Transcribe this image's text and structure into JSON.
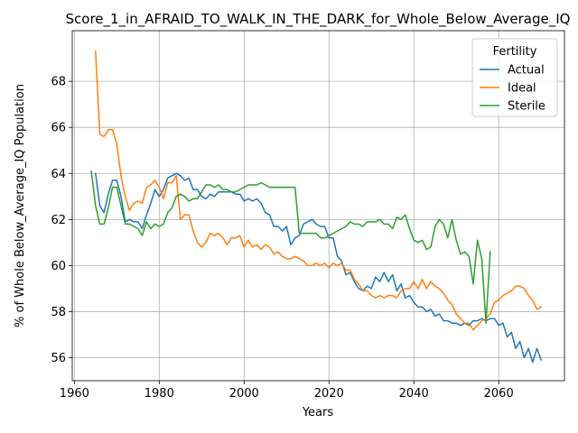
{
  "chart_data": {
    "type": "line",
    "title": "Score_1_in_AFRAID_TO_WALK_IN_THE_DARK_for_Whole_Below_Average_IQ",
    "xlabel": "Years",
    "ylabel": "% of Whole Below_Average_IQ Population",
    "xlim": [
      1959.5,
      2075.5
    ],
    "ylim": [
      55.0,
      70.2
    ],
    "xticks": [
      1960,
      1980,
      2000,
      2020,
      2040,
      2060
    ],
    "yticks": [
      56,
      58,
      60,
      62,
      64,
      66,
      68
    ],
    "grid": true,
    "legend": {
      "title": "Fertility",
      "position": "top-right"
    },
    "series": [
      {
        "name": "Actual",
        "color": "#1f77b4",
        "x": [
          1965,
          1966,
          1967,
          1968,
          1969,
          1970,
          1971,
          1972,
          1973,
          1974,
          1975,
          1976,
          1977,
          1978,
          1979,
          1980,
          1981,
          1982,
          1983,
          1984,
          1985,
          1986,
          1987,
          1988,
          1989,
          1990,
          1991,
          1992,
          1993,
          1994,
          1995,
          1996,
          1997,
          1998,
          1999,
          2000,
          2001,
          2002,
          2003,
          2004,
          2005,
          2006,
          2007,
          2008,
          2009,
          2010,
          2011,
          2012,
          2013,
          2014,
          2015,
          2016,
          2017,
          2018,
          2019,
          2020,
          2021,
          2022,
          2023,
          2024,
          2025,
          2026,
          2027,
          2028,
          2029,
          2030,
          2031,
          2032,
          2033,
          2034,
          2035,
          2036,
          2037,
          2038,
          2039,
          2040,
          2041,
          2042,
          2043,
          2044,
          2045,
          2046,
          2047,
          2048,
          2049,
          2050,
          2051,
          2052,
          2053,
          2054,
          2055,
          2056,
          2057,
          2058,
          2059,
          2060,
          2061,
          2062,
          2063,
          2064,
          2065,
          2066,
          2067,
          2068,
          2069,
          2070
        ],
        "y": [
          64.0,
          62.6,
          62.3,
          63.1,
          63.7,
          63.7,
          63.0,
          61.9,
          62.0,
          61.9,
          61.9,
          61.6,
          62.2,
          62.7,
          63.3,
          63.0,
          63.3,
          63.8,
          63.9,
          64.0,
          63.9,
          63.7,
          63.8,
          63.3,
          63.3,
          63.0,
          62.9,
          63.1,
          63.0,
          63.2,
          63.2,
          63.2,
          63.2,
          63.1,
          63.1,
          62.8,
          62.9,
          62.8,
          62.9,
          62.7,
          62.3,
          62.2,
          61.7,
          61.7,
          61.5,
          61.7,
          60.9,
          61.2,
          61.3,
          61.8,
          61.9,
          62.0,
          61.8,
          61.7,
          61.7,
          61.2,
          61.2,
          60.4,
          60.2,
          59.6,
          59.7,
          59.3,
          59.0,
          58.9,
          59.1,
          59.0,
          59.5,
          59.3,
          59.7,
          59.3,
          59.6,
          58.9,
          59.2,
          58.6,
          58.7,
          58.4,
          58.2,
          58.2,
          58.0,
          58.1,
          57.8,
          57.9,
          57.6,
          57.6,
          57.5,
          57.5,
          57.4,
          57.5,
          57.4,
          57.6,
          57.6,
          57.7,
          57.6,
          57.7,
          57.7,
          57.4,
          57.5,
          56.9,
          57.1,
          56.4,
          56.7,
          56.0,
          56.4,
          55.8,
          56.4,
          55.9
        ]
      },
      {
        "name": "Ideal",
        "color": "#ff7f0e",
        "x": [
          1965,
          1966,
          1967,
          1968,
          1969,
          1970,
          1971,
          1972,
          1973,
          1974,
          1975,
          1976,
          1977,
          1978,
          1979,
          1980,
          1981,
          1982,
          1983,
          1984,
          1985,
          1986,
          1987,
          1988,
          1989,
          1990,
          1991,
          1992,
          1993,
          1994,
          1995,
          1996,
          1997,
          1998,
          1999,
          2000,
          2001,
          2002,
          2003,
          2004,
          2005,
          2006,
          2007,
          2008,
          2009,
          2010,
          2011,
          2012,
          2013,
          2014,
          2015,
          2016,
          2017,
          2018,
          2019,
          2020,
          2021,
          2022,
          2023,
          2024,
          2025,
          2026,
          2027,
          2028,
          2029,
          2030,
          2031,
          2032,
          2033,
          2034,
          2035,
          2036,
          2037,
          2038,
          2039,
          2040,
          2041,
          2042,
          2043,
          2044,
          2045,
          2046,
          2047,
          2048,
          2049,
          2050,
          2051,
          2052,
          2053,
          2054,
          2055,
          2056,
          2057,
          2058,
          2059,
          2060,
          2061,
          2062,
          2063,
          2064,
          2065,
          2066,
          2067,
          2068,
          2069,
          2070
        ],
        "y": [
          69.3,
          65.7,
          65.6,
          65.9,
          65.9,
          65.3,
          63.9,
          63.0,
          62.4,
          62.7,
          62.8,
          62.7,
          63.4,
          63.5,
          63.7,
          63.4,
          62.9,
          63.6,
          63.6,
          63.9,
          62.0,
          62.2,
          62.2,
          61.5,
          61.0,
          60.8,
          61.0,
          61.4,
          61.3,
          61.4,
          61.2,
          60.9,
          61.2,
          61.2,
          61.3,
          60.8,
          61.1,
          60.8,
          60.9,
          60.7,
          60.9,
          60.8,
          60.5,
          60.6,
          60.4,
          60.3,
          60.3,
          60.4,
          60.3,
          60.2,
          60.0,
          60.0,
          60.1,
          60.0,
          60.1,
          59.9,
          60.1,
          60.0,
          60.1,
          59.8,
          59.8,
          59.4,
          59.2,
          58.9,
          58.9,
          58.7,
          58.6,
          58.7,
          58.6,
          58.7,
          58.7,
          58.6,
          58.9,
          59.0,
          59.0,
          59.3,
          59.0,
          59.4,
          59.0,
          59.3,
          59.1,
          59.0,
          58.8,
          58.5,
          58.3,
          57.9,
          57.7,
          57.5,
          57.5,
          57.2,
          57.4,
          57.6,
          57.7,
          57.9,
          58.4,
          58.5,
          58.7,
          58.8,
          58.9,
          59.1,
          59.1,
          59.0,
          58.7,
          58.5,
          58.1,
          58.2
        ]
      },
      {
        "name": "Sterile",
        "color": "#2ca02c",
        "x": [
          1964,
          1965,
          1966,
          1967,
          1968,
          1969,
          1970,
          1971,
          1972,
          1973,
          1974,
          1975,
          1976,
          1977,
          1978,
          1979,
          1980,
          1981,
          1982,
          1983,
          1984,
          1985,
          1986,
          1987,
          1988,
          1989,
          1990,
          1991,
          1992,
          1993,
          1994,
          1995,
          1996,
          1997,
          1998,
          1999,
          2000,
          2001,
          2002,
          2003,
          2004,
          2005,
          2006,
          2007,
          2008,
          2009,
          2010,
          2011,
          2012,
          2013,
          2014,
          2015,
          2016,
          2017,
          2018,
          2019,
          2020,
          2021,
          2022,
          2023,
          2024,
          2025,
          2026,
          2027,
          2028,
          2029,
          2030,
          2031,
          2032,
          2033,
          2034,
          2035,
          2036,
          2037,
          2038,
          2039,
          2040,
          2041,
          2042,
          2043,
          2044,
          2045,
          2046,
          2047,
          2048,
          2049,
          2050,
          2051,
          2052,
          2053,
          2054,
          2055,
          2056,
          2057,
          2058
        ],
        "y": [
          64.1,
          62.6,
          61.8,
          61.8,
          62.5,
          63.4,
          63.4,
          62.6,
          61.8,
          61.8,
          61.7,
          61.6,
          61.3,
          61.9,
          61.6,
          61.8,
          61.7,
          61.8,
          62.3,
          62.5,
          63.0,
          63.1,
          63.0,
          62.8,
          62.9,
          62.9,
          63.2,
          63.5,
          63.5,
          63.4,
          63.5,
          63.3,
          63.3,
          63.2,
          63.2,
          63.3,
          63.4,
          63.5,
          63.5,
          63.5,
          63.6,
          63.5,
          63.4,
          63.4,
          63.4,
          63.4,
          63.4,
          63.4,
          63.4,
          61.4,
          61.4,
          61.4,
          61.4,
          61.4,
          61.2,
          61.2,
          61.3,
          61.4,
          61.5,
          61.6,
          61.7,
          61.9,
          61.8,
          61.8,
          61.7,
          61.9,
          61.9,
          61.9,
          62.0,
          61.8,
          61.8,
          61.6,
          62.1,
          62.0,
          62.2,
          61.6,
          61.1,
          61.0,
          61.1,
          60.7,
          60.8,
          61.7,
          62.0,
          61.8,
          61.2,
          62.0,
          61.1,
          60.5,
          60.6,
          60.4,
          59.2,
          61.1,
          60.3,
          57.5,
          60.6
        ]
      }
    ]
  }
}
